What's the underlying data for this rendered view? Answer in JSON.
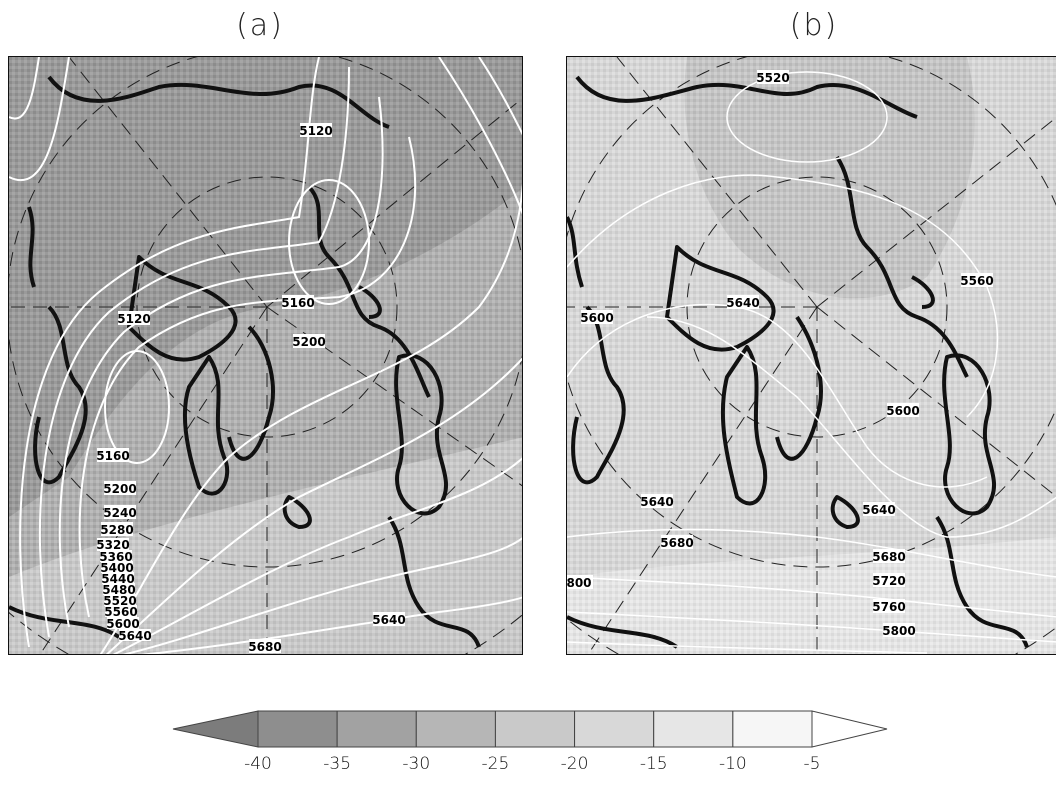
{
  "panels": [
    {
      "label": "(a)",
      "contour_labels": [
        "5120",
        "5120",
        "5160",
        "5200",
        "5160",
        "5200",
        "5240",
        "5280",
        "5320",
        "5360",
        "5400",
        "5440",
        "5480",
        "5520",
        "5560",
        "5600",
        "5640",
        "5640",
        "5680"
      ]
    },
    {
      "label": "(b)",
      "contour_labels": [
        "5520",
        "5560",
        "5640",
        "5600",
        "5600",
        "5640",
        "5640",
        "5680",
        "5680",
        "5720",
        "5760",
        "5800",
        "800"
      ]
    }
  ],
  "colorbar": {
    "ticks": [
      "-40",
      "-35",
      "-30",
      "-25",
      "-20",
      "-15",
      "-10",
      "-5"
    ],
    "colors": [
      "#7c7c7c",
      "#8e8e8e",
      "#a2a2a2",
      "#b6b6b6",
      "#c9c9c9",
      "#d8d8d8",
      "#e6e6e6",
      "#f6f6f6",
      "#ffffff"
    ]
  },
  "colors": {
    "land": "#111111",
    "contour": "#ffffff",
    "background": "#ffffff"
  }
}
